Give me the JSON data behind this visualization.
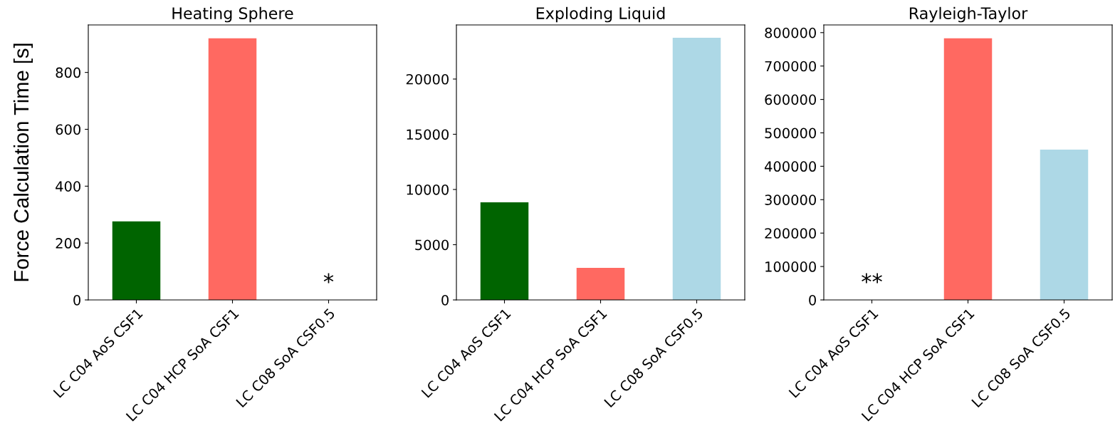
{
  "chart_data": [
    {
      "type": "bar",
      "title": "Heating Sphere",
      "ylabel": "Force Calculation Time [s]",
      "categories": [
        "LC C04 AoS CSF1",
        "LC C04 HCP SoA CSF1",
        "LC C08 SoA CSF0.5"
      ],
      "values": [
        276,
        920,
        null
      ],
      "colors": [
        "#006400",
        "#ff6961",
        "#add8e6"
      ],
      "ylim": [
        0,
        967
      ],
      "yticks": [
        0,
        200,
        400,
        600,
        800
      ],
      "annotations": [
        "*"
      ]
    },
    {
      "type": "bar",
      "title": "Exploding Liquid",
      "categories": [
        "LC C04 AoS CSF1",
        "LC C04 HCP SoA CSF1",
        "LC C08 SoA CSF0.5"
      ],
      "values": [
        8840,
        2900,
        23740
      ],
      "colors": [
        "#006400",
        "#ff6961",
        "#add8e6"
      ],
      "ylim": [
        0,
        24900
      ],
      "yticks": [
        0,
        5000,
        10000,
        15000,
        20000
      ]
    },
    {
      "type": "bar",
      "title": "Rayleigh-Taylor",
      "categories": [
        "LC C04 AoS CSF1",
        "LC C04 HCP SoA CSF1",
        "LC C08 SoA CSF0.5"
      ],
      "values": [
        null,
        783000,
        450000
      ],
      "colors": [
        "#006400",
        "#ff6961",
        "#add8e6"
      ],
      "ylim": [
        0,
        823000
      ],
      "yticks": [
        0,
        100000,
        200000,
        300000,
        400000,
        500000,
        600000,
        700000,
        800000
      ],
      "annotations": [
        "**"
      ]
    }
  ]
}
